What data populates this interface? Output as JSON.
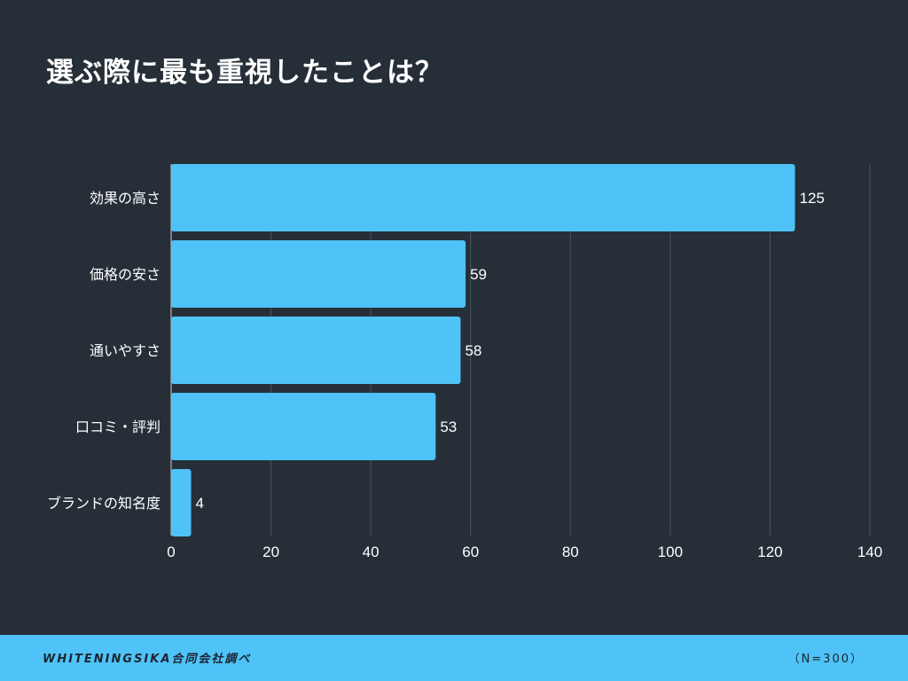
{
  "title": "選ぶ際に最も重視したことは？",
  "footer": {
    "source": "WHITENINGSIKA合同会社調べ",
    "sample": "（N=300）"
  },
  "colors": {
    "background": "#262f38",
    "bar": "#4fc3f7",
    "grid": "#4a545e"
  },
  "chart_data": {
    "type": "bar",
    "orientation": "horizontal",
    "categories": [
      "効果の高さ",
      "価格の安さ",
      "通いやすさ",
      "口コミ・評判",
      "ブランドの知名度"
    ],
    "values": [
      125,
      59,
      58,
      53,
      4
    ],
    "xlim": [
      0,
      140
    ],
    "xticks": [
      0,
      20,
      40,
      60,
      80,
      100,
      120,
      140
    ],
    "grid": true,
    "data_labels": true
  }
}
